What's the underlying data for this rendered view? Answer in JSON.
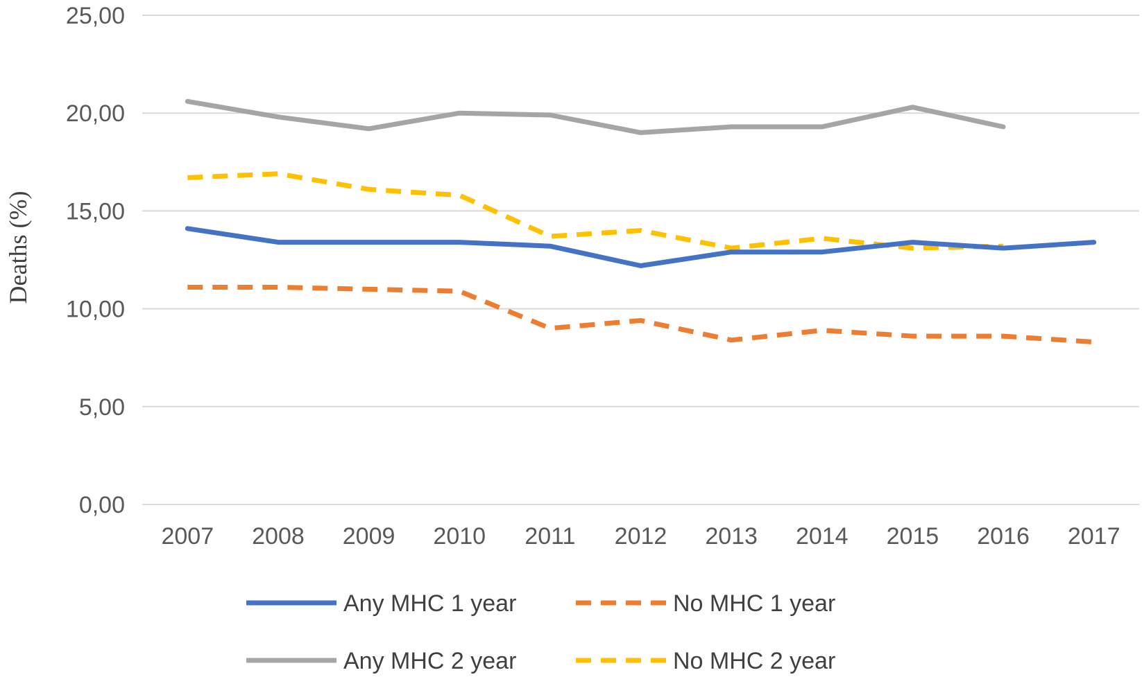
{
  "chart_data": {
    "type": "line",
    "title": "",
    "xlabel": "",
    "ylabel": "Deaths (%)",
    "categories": [
      "2007",
      "2008",
      "2009",
      "2010",
      "2011",
      "2012",
      "2013",
      "2014",
      "2015",
      "2016",
      "2017"
    ],
    "ylim": [
      0,
      25
    ],
    "yticks": [
      0,
      5,
      10,
      15,
      20,
      25
    ],
    "ytick_labels": [
      "0,00",
      "5,00",
      "10,00",
      "15,00",
      "20,00",
      "25,00"
    ],
    "grid": true,
    "legend_position": "bottom",
    "series": [
      {
        "name": "Any MHC 1 year",
        "color": "#4472C4",
        "dashed": false,
        "values": [
          14.1,
          13.4,
          13.4,
          13.4,
          13.2,
          12.2,
          12.9,
          12.9,
          13.4,
          13.1,
          13.4
        ]
      },
      {
        "name": "No MHC 1 year",
        "color": "#ED7D31",
        "dashed": true,
        "values": [
          11.1,
          11.1,
          11.0,
          10.9,
          9.0,
          9.4,
          8.4,
          8.9,
          8.6,
          8.6,
          8.3
        ]
      },
      {
        "name": "Any MHC 2 year",
        "color": "#A5A5A5",
        "dashed": false,
        "values": [
          20.6,
          19.8,
          19.2,
          20.0,
          19.9,
          19.0,
          19.3,
          19.3,
          20.3,
          19.3,
          null
        ]
      },
      {
        "name": "No MHC 2 year",
        "color": "#FFC000",
        "dashed": true,
        "values": [
          16.7,
          16.9,
          16.1,
          15.8,
          13.7,
          14.0,
          13.1,
          13.6,
          13.1,
          13.2,
          null
        ]
      }
    ]
  }
}
